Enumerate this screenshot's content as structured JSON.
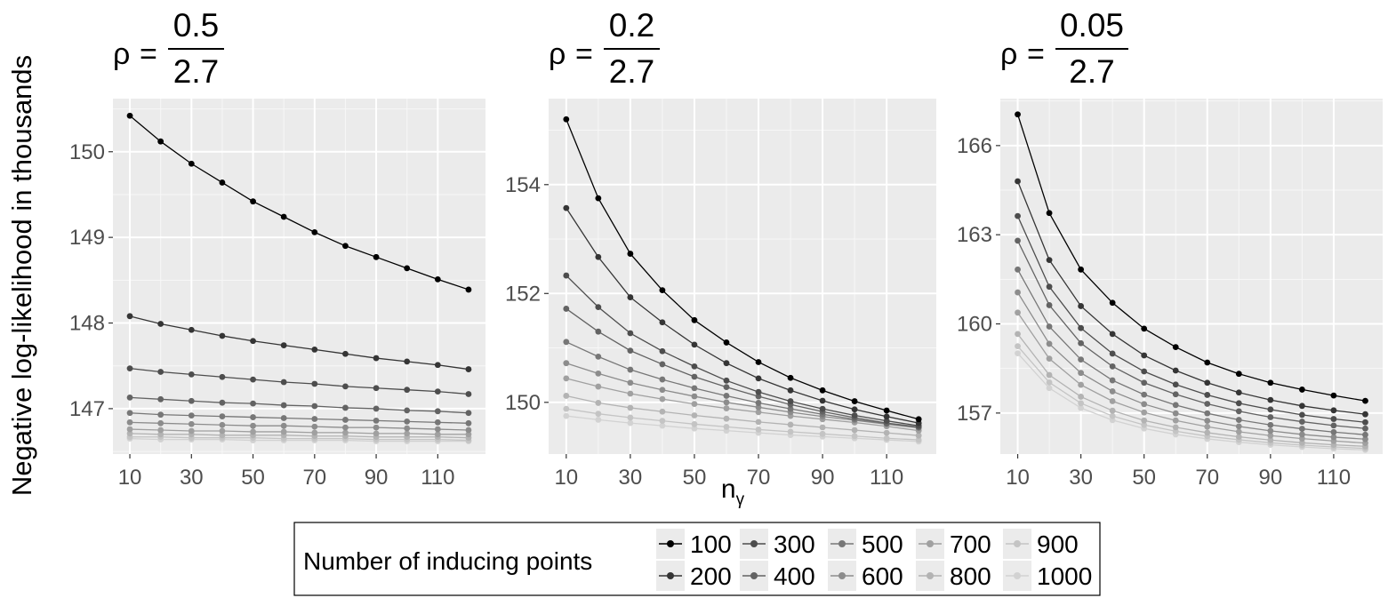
{
  "ylabel": "Negative log-likelihood in thousands",
  "xlabel_main": "n",
  "xlabel_sub": "γ",
  "rho_symbol": "ρ",
  "equals": "=",
  "legend": {
    "title": "Number of inducing points",
    "entries": [
      {
        "label": "100",
        "color": "#000000"
      },
      {
        "label": "200",
        "color": "#353535"
      },
      {
        "label": "300",
        "color": "#4d4d4d"
      },
      {
        "label": "400",
        "color": "#636363"
      },
      {
        "label": "500",
        "color": "#777777"
      },
      {
        "label": "600",
        "color": "#8c8c8c"
      },
      {
        "label": "700",
        "color": "#a0a0a0"
      },
      {
        "label": "800",
        "color": "#b3b3b3"
      },
      {
        "label": "900",
        "color": "#c4c4c4"
      },
      {
        "label": "1000",
        "color": "#d2d2d2"
      }
    ]
  },
  "chart_data": [
    {
      "type": "line",
      "title": {
        "numerator": "0.5",
        "denominator": "2.7"
      },
      "x": [
        10,
        20,
        30,
        40,
        50,
        60,
        70,
        80,
        90,
        100,
        110,
        120
      ],
      "xticks": [
        10,
        30,
        50,
        70,
        90,
        110
      ],
      "xlim": [
        4.5,
        125.5
      ],
      "ylim": [
        146.47,
        150.62
      ],
      "yticks": [
        147,
        148,
        149,
        150
      ],
      "series": [
        {
          "name": "100",
          "values": [
            150.42,
            150.12,
            149.86,
            149.64,
            149.42,
            149.24,
            149.06,
            148.9,
            148.77,
            148.64,
            148.51,
            148.39
          ]
        },
        {
          "name": "200",
          "values": [
            148.08,
            147.99,
            147.92,
            147.85,
            147.79,
            147.74,
            147.69,
            147.64,
            147.59,
            147.55,
            147.51,
            147.46
          ]
        },
        {
          "name": "300",
          "values": [
            147.47,
            147.43,
            147.4,
            147.37,
            147.34,
            147.31,
            147.29,
            147.26,
            147.24,
            147.22,
            147.2,
            147.17
          ]
        },
        {
          "name": "400",
          "values": [
            147.13,
            147.11,
            147.09,
            147.07,
            147.06,
            147.04,
            147.03,
            147.01,
            147.0,
            146.98,
            146.97,
            146.95
          ]
        },
        {
          "name": "500",
          "values": [
            146.95,
            146.93,
            146.92,
            146.91,
            146.9,
            146.89,
            146.88,
            146.87,
            146.86,
            146.85,
            146.84,
            146.83
          ]
        },
        {
          "name": "600",
          "values": [
            146.84,
            146.83,
            146.82,
            146.81,
            146.8,
            146.8,
            146.79,
            146.78,
            146.78,
            146.77,
            146.76,
            146.75
          ]
        },
        {
          "name": "700",
          "values": [
            146.76,
            146.75,
            146.74,
            146.74,
            146.73,
            146.73,
            146.72,
            146.72,
            146.71,
            146.71,
            146.7,
            146.7
          ]
        },
        {
          "name": "800",
          "values": [
            146.71,
            146.7,
            146.7,
            146.69,
            146.69,
            146.69,
            146.68,
            146.68,
            146.67,
            146.67,
            146.67,
            146.66
          ]
        },
        {
          "name": "900",
          "values": [
            146.67,
            146.67,
            146.66,
            146.66,
            146.66,
            146.65,
            146.65,
            146.65,
            146.64,
            146.64,
            146.64,
            146.63
          ]
        },
        {
          "name": "1000",
          "values": [
            146.65,
            146.64,
            146.64,
            146.64,
            146.63,
            146.63,
            146.63,
            146.63,
            146.62,
            146.62,
            146.62,
            146.62
          ]
        }
      ]
    },
    {
      "type": "line",
      "title": {
        "numerator": "0.2",
        "denominator": "2.7"
      },
      "x": [
        10,
        20,
        30,
        40,
        50,
        60,
        70,
        80,
        90,
        100,
        110,
        120
      ],
      "xticks": [
        10,
        30,
        50,
        70,
        90,
        110
      ],
      "xlim": [
        4.5,
        125.5
      ],
      "ylim": [
        149.05,
        155.58
      ],
      "yticks": [
        150,
        152,
        154
      ],
      "series": [
        {
          "name": "100",
          "values": [
            155.2,
            153.75,
            152.73,
            152.06,
            151.51,
            151.1,
            150.74,
            150.45,
            150.22,
            150.02,
            149.85,
            149.69
          ]
        },
        {
          "name": "200",
          "values": [
            153.57,
            152.67,
            151.93,
            151.47,
            151.06,
            150.72,
            150.44,
            150.22,
            150.03,
            149.87,
            149.74,
            149.62
          ]
        },
        {
          "name": "300",
          "values": [
            152.33,
            151.75,
            151.27,
            150.94,
            150.66,
            150.4,
            150.19,
            150.02,
            149.88,
            149.76,
            149.66,
            149.57
          ]
        },
        {
          "name": "400",
          "values": [
            151.72,
            151.3,
            150.95,
            150.7,
            150.47,
            150.28,
            150.11,
            149.96,
            149.83,
            149.72,
            149.62,
            149.55
          ]
        },
        {
          "name": "500",
          "values": [
            151.11,
            150.84,
            150.6,
            150.42,
            150.26,
            150.12,
            149.99,
            149.88,
            149.78,
            149.69,
            149.61,
            149.54
          ]
        },
        {
          "name": "600",
          "values": [
            150.72,
            150.53,
            150.36,
            150.23,
            150.11,
            150.0,
            149.91,
            149.82,
            149.74,
            149.67,
            149.6,
            149.53
          ]
        },
        {
          "name": "700",
          "values": [
            150.44,
            150.29,
            150.16,
            150.06,
            149.97,
            149.89,
            149.82,
            149.75,
            149.69,
            149.63,
            149.56,
            149.48
          ]
        },
        {
          "name": "800",
          "values": [
            150.12,
            149.99,
            149.9,
            149.83,
            149.76,
            149.7,
            149.64,
            149.59,
            149.54,
            149.49,
            149.44,
            149.39
          ]
        },
        {
          "name": "900",
          "values": [
            149.88,
            149.79,
            149.72,
            149.66,
            149.6,
            149.55,
            149.5,
            149.46,
            149.42,
            149.38,
            149.34,
            149.31
          ]
        },
        {
          "name": "1000",
          "values": [
            149.75,
            149.68,
            149.62,
            149.57,
            149.52,
            149.48,
            149.44,
            149.4,
            149.37,
            149.34,
            149.31,
            149.28
          ]
        }
      ]
    },
    {
      "type": "line",
      "title": {
        "numerator": "0.05",
        "denominator": "2.7"
      },
      "x": [
        10,
        20,
        30,
        40,
        50,
        60,
        70,
        80,
        90,
        100,
        110,
        120
      ],
      "xticks": [
        10,
        30,
        50,
        70,
        90,
        110
      ],
      "xlim": [
        4.5,
        125.5
      ],
      "ylim": [
        155.62,
        167.58
      ],
      "yticks": [
        157,
        160,
        163,
        166
      ],
      "series": [
        {
          "name": "100",
          "values": [
            167.05,
            163.73,
            161.83,
            160.71,
            159.84,
            159.22,
            158.7,
            158.32,
            158.02,
            157.79,
            157.59,
            157.41
          ]
        },
        {
          "name": "200",
          "values": [
            164.8,
            162.15,
            160.6,
            159.66,
            158.94,
            158.43,
            158.02,
            157.69,
            157.44,
            157.24,
            157.09,
            156.96
          ]
        },
        {
          "name": "300",
          "values": [
            163.63,
            161.25,
            159.86,
            159.0,
            158.4,
            157.96,
            157.61,
            157.33,
            157.12,
            156.94,
            156.8,
            156.69
          ]
        },
        {
          "name": "400",
          "values": [
            162.8,
            160.63,
            159.35,
            158.57,
            158.02,
            157.63,
            157.31,
            157.06,
            156.86,
            156.71,
            156.58,
            156.48
          ]
        },
        {
          "name": "500",
          "values": [
            161.83,
            159.91,
            158.8,
            158.1,
            157.62,
            157.27,
            156.99,
            156.77,
            156.6,
            156.47,
            156.36,
            156.27
          ]
        },
        {
          "name": "600",
          "values": [
            161.06,
            159.33,
            158.35,
            157.73,
            157.3,
            156.99,
            156.74,
            156.55,
            156.4,
            156.28,
            156.19,
            156.12
          ]
        },
        {
          "name": "700",
          "values": [
            160.38,
            158.83,
            157.95,
            157.4,
            157.02,
            156.75,
            156.54,
            156.37,
            156.24,
            156.14,
            156.06,
            155.99
          ]
        },
        {
          "name": "800",
          "values": [
            159.66,
            158.28,
            157.55,
            157.08,
            156.75,
            156.52,
            156.34,
            156.2,
            156.09,
            156.0,
            155.93,
            155.88
          ]
        },
        {
          "name": "900",
          "values": [
            159.25,
            158.03,
            157.33,
            156.9,
            156.6,
            156.39,
            156.22,
            156.1,
            156.0,
            155.92,
            155.86,
            155.81
          ]
        },
        {
          "name": "1000",
          "values": [
            159.01,
            157.84,
            157.17,
            156.76,
            156.48,
            156.28,
            156.13,
            156.02,
            155.93,
            155.86,
            155.8,
            155.76
          ]
        }
      ]
    }
  ]
}
